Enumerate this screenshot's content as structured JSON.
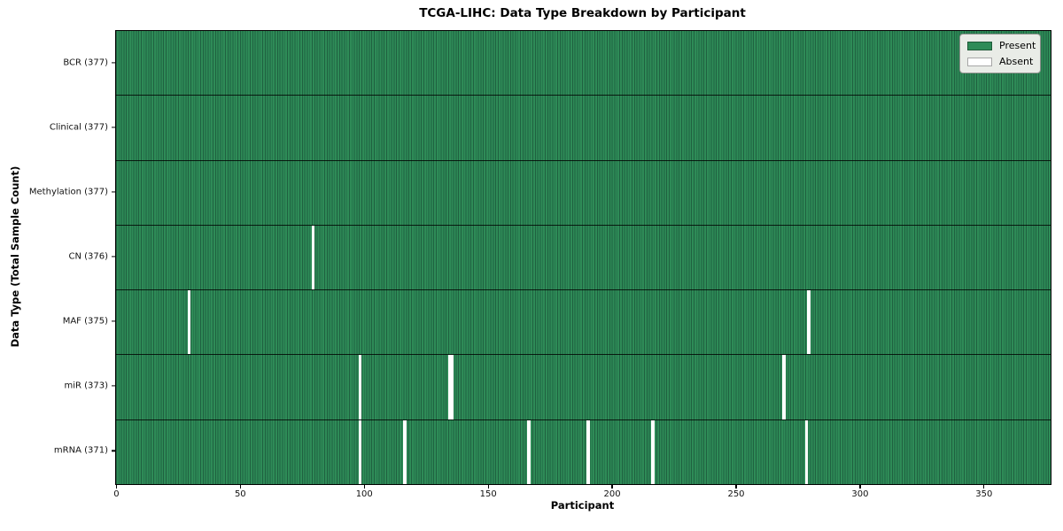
{
  "chart_data": {
    "type": "heatmap",
    "title": "TCGA-LIHC: Data Type Breakdown by Participant",
    "xlabel": "Participant",
    "ylabel": "Data Type (Total Sample Count)",
    "n_participants": 377,
    "x_ticks": [
      0,
      50,
      100,
      150,
      200,
      250,
      300,
      350
    ],
    "x_range": [
      0,
      377
    ],
    "grid": "off",
    "rows": [
      {
        "data_type": "BCR",
        "label": "BCR (377)",
        "present_count": 377,
        "absent_participants": []
      },
      {
        "data_type": "Clinical",
        "label": "Clinical (377)",
        "present_count": 377,
        "absent_participants": []
      },
      {
        "data_type": "Methylation",
        "label": "Methylation (377)",
        "present_count": 377,
        "absent_participants": []
      },
      {
        "data_type": "CN",
        "label": "CN (376)",
        "present_count": 376,
        "absent_participants": [
          79
        ]
      },
      {
        "data_type": "MAF",
        "label": "MAF (375)",
        "present_count": 375,
        "absent_participants": [
          29,
          279
        ]
      },
      {
        "data_type": "miR",
        "label": "miR (373)",
        "present_count": 373,
        "absent_participants": [
          98,
          134,
          135,
          269
        ]
      },
      {
        "data_type": "mRNA",
        "label": "mRNA (371)",
        "present_count": 371,
        "absent_participants": [
          98,
          116,
          166,
          190,
          216,
          278
        ]
      }
    ],
    "legend": {
      "position": "upper right",
      "entries": [
        {
          "label": "Present",
          "color": "#2e8b57"
        },
        {
          "label": "Absent",
          "color": "#ffffff"
        }
      ]
    },
    "colors": {
      "present": "#2e8b57",
      "absent": "#ffffff",
      "cell_edge": "#1f6140",
      "row_separator": "#151515",
      "spine": "#000000"
    }
  }
}
